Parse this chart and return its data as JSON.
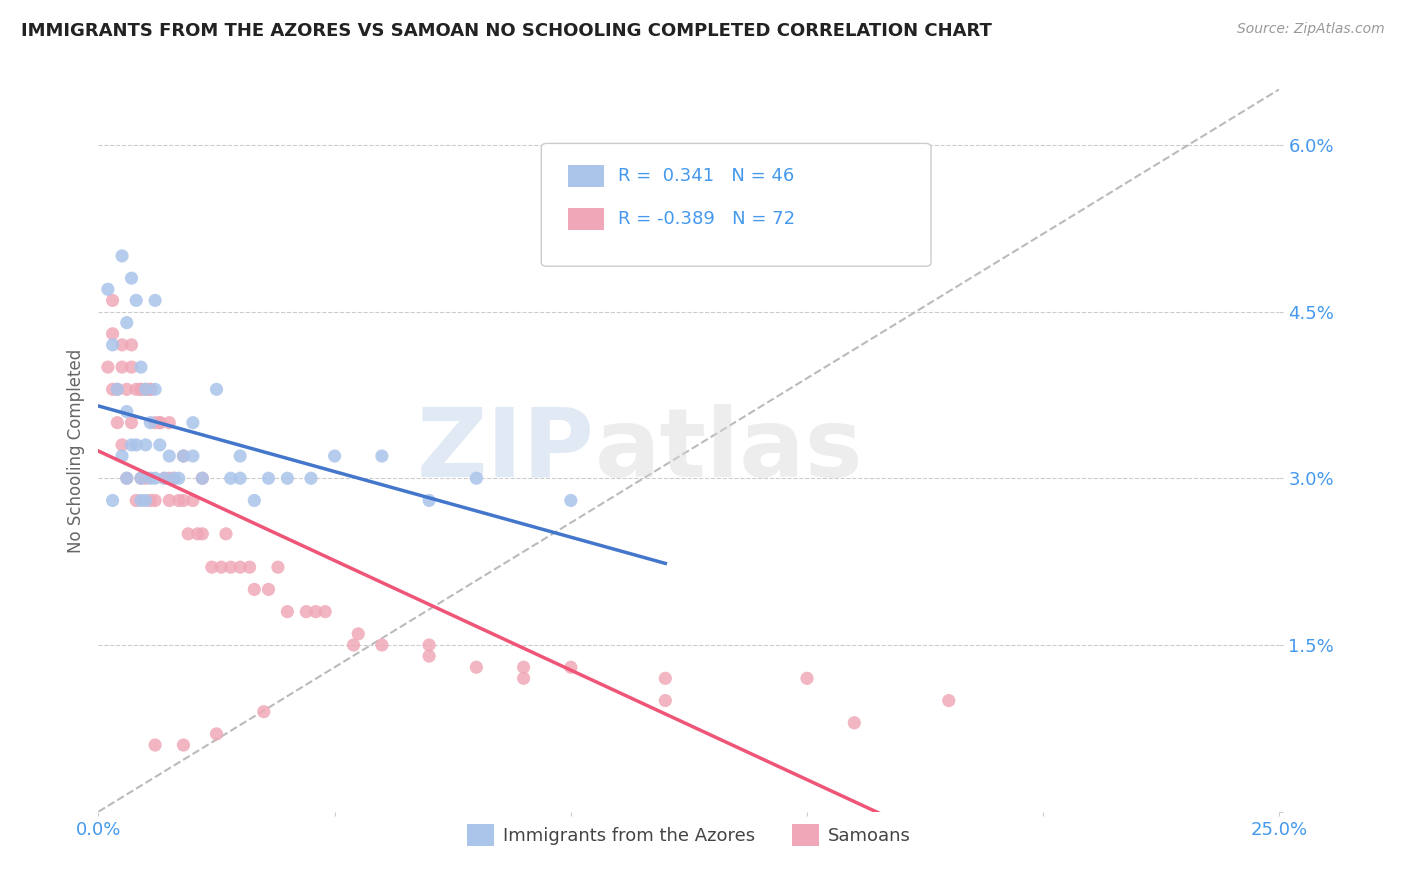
{
  "title": "IMMIGRANTS FROM THE AZORES VS SAMOAN NO SCHOOLING COMPLETED CORRELATION CHART",
  "source_text": "Source: ZipAtlas.com",
  "ylabel": "No Schooling Completed",
  "xlim": [
    0.0,
    0.25
  ],
  "ylim": [
    0.0,
    0.065
  ],
  "xticks": [
    0.0,
    0.05,
    0.1,
    0.15,
    0.2,
    0.25
  ],
  "yticks": [
    0.0,
    0.015,
    0.03,
    0.045,
    0.06
  ],
  "yticklabels": [
    "",
    "1.5%",
    "3.0%",
    "4.5%",
    "6.0%"
  ],
  "r_azores": 0.341,
  "n_azores": 46,
  "r_samoans": -0.389,
  "n_samoans": 72,
  "color_azores": "#aac4ea",
  "color_samoans": "#f0a8b8",
  "color_azores_line": "#4477cc",
  "color_samoans_line": "#ee5577",
  "color_diag": "#bbbbbb",
  "color_grid": "#cccccc",
  "color_title": "#222222",
  "color_axis_label": "#666666",
  "color_tick_label": "#4499ee",
  "color_source": "#999999",
  "legend_r_color": "#4499ee",
  "watermark_zip": "ZIP",
  "watermark_atlas": "atlas",
  "azores_x": [
    0.002,
    0.003,
    0.004,
    0.005,
    0.005,
    0.006,
    0.006,
    0.007,
    0.007,
    0.008,
    0.008,
    0.009,
    0.009,
    0.01,
    0.01,
    0.01,
    0.011,
    0.011,
    0.012,
    0.012,
    0.013,
    0.014,
    0.015,
    0.016,
    0.017,
    0.018,
    0.02,
    0.022,
    0.025,
    0.028,
    0.03,
    0.033,
    0.036,
    0.04,
    0.045,
    0.05,
    0.06,
    0.07,
    0.08,
    0.1,
    0.003,
    0.006,
    0.009,
    0.012,
    0.02,
    0.03
  ],
  "azores_y": [
    0.047,
    0.042,
    0.038,
    0.05,
    0.032,
    0.044,
    0.036,
    0.048,
    0.033,
    0.046,
    0.033,
    0.04,
    0.028,
    0.038,
    0.033,
    0.028,
    0.035,
    0.03,
    0.038,
    0.03,
    0.033,
    0.03,
    0.032,
    0.03,
    0.03,
    0.032,
    0.032,
    0.03,
    0.038,
    0.03,
    0.032,
    0.028,
    0.03,
    0.03,
    0.03,
    0.032,
    0.032,
    0.028,
    0.03,
    0.028,
    0.028,
    0.03,
    0.03,
    0.046,
    0.035,
    0.03
  ],
  "samoans_x": [
    0.002,
    0.003,
    0.003,
    0.004,
    0.004,
    0.005,
    0.005,
    0.006,
    0.006,
    0.007,
    0.007,
    0.008,
    0.008,
    0.009,
    0.009,
    0.01,
    0.01,
    0.011,
    0.011,
    0.012,
    0.012,
    0.013,
    0.014,
    0.015,
    0.015,
    0.016,
    0.017,
    0.018,
    0.019,
    0.02,
    0.021,
    0.022,
    0.024,
    0.026,
    0.028,
    0.03,
    0.033,
    0.036,
    0.04,
    0.044,
    0.048,
    0.055,
    0.06,
    0.07,
    0.08,
    0.09,
    0.1,
    0.12,
    0.15,
    0.18,
    0.003,
    0.005,
    0.007,
    0.009,
    0.011,
    0.013,
    0.015,
    0.018,
    0.022,
    0.027,
    0.032,
    0.038,
    0.046,
    0.054,
    0.07,
    0.09,
    0.12,
    0.16,
    0.012,
    0.018,
    0.025,
    0.035
  ],
  "samoans_y": [
    0.04,
    0.038,
    0.046,
    0.038,
    0.035,
    0.04,
    0.033,
    0.038,
    0.03,
    0.04,
    0.035,
    0.038,
    0.028,
    0.038,
    0.03,
    0.038,
    0.03,
    0.038,
    0.028,
    0.035,
    0.028,
    0.035,
    0.03,
    0.03,
    0.028,
    0.03,
    0.028,
    0.028,
    0.025,
    0.028,
    0.025,
    0.025,
    0.022,
    0.022,
    0.022,
    0.022,
    0.02,
    0.02,
    0.018,
    0.018,
    0.018,
    0.016,
    0.015,
    0.015,
    0.013,
    0.012,
    0.013,
    0.012,
    0.012,
    0.01,
    0.043,
    0.042,
    0.042,
    0.038,
    0.038,
    0.035,
    0.035,
    0.032,
    0.03,
    0.025,
    0.022,
    0.022,
    0.018,
    0.015,
    0.014,
    0.013,
    0.01,
    0.008,
    0.006,
    0.006,
    0.007,
    0.009
  ]
}
